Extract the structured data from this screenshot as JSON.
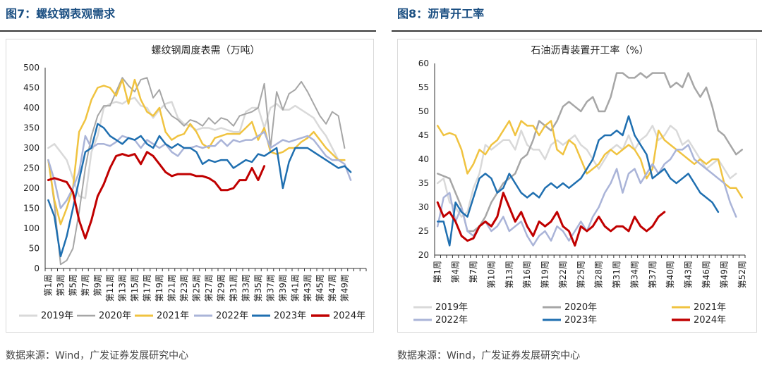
{
  "figure_left": {
    "title": "图7：螺纹钢表观需求",
    "source": "数据来源：Wind，广发证券发展研究中心"
  },
  "figure_right": {
    "title": "图8：沥青开工率",
    "source": "数据来源：Wind，广发证券发展研究中心"
  },
  "chart_data": [
    {
      "type": "line",
      "title": "螺纹钢周度表需（万吨）",
      "xlabel": "",
      "ylabel": "",
      "ylim": [
        0,
        500
      ],
      "y_ticks": [
        0,
        50,
        100,
        150,
        200,
        250,
        300,
        350,
        400,
        450,
        500
      ],
      "x_count": 52,
      "x_tick_labels": [
        "第1周",
        "第3周",
        "第5周",
        "第7周",
        "第9周",
        "第11周",
        "第13周",
        "第15周",
        "第17周",
        "第19周",
        "第21周",
        "第23周",
        "第25周",
        "第27周",
        "第29周",
        "第31周",
        "第33周",
        "第35周",
        "第37周",
        "第39周",
        "第41周",
        "第43周",
        "第45周",
        "第47周",
        "第49周"
      ],
      "legend_position": "bottom",
      "series": [
        {
          "name": "2019年",
          "color": "#d9d9d9",
          "width": 2.5,
          "values": [
            300,
            310,
            290,
            270,
            225,
            180,
            175,
            290,
            330,
            400,
            410,
            415,
            410,
            420,
            425,
            405,
            400,
            375,
            395,
            410,
            415,
            375,
            360,
            355,
            345,
            350,
            350,
            345,
            350,
            345,
            340,
            340,
            390,
            400,
            400,
            350,
            400,
            410,
            395,
            395,
            405,
            395,
            385,
            375,
            350,
            330,
            300,
            270
          ]
        },
        {
          "name": "2020年",
          "color": "#a6a6a6",
          "width": 2,
          "values": [
            270,
            160,
            10,
            20,
            50,
            140,
            250,
            330,
            380,
            405,
            405,
            440,
            475,
            455,
            440,
            470,
            475,
            425,
            445,
            400,
            380,
            370,
            355,
            370,
            365,
            355,
            375,
            360,
            375,
            370,
            355,
            380,
            385,
            390,
            400,
            460,
            300,
            440,
            395,
            435,
            445,
            465,
            440,
            410,
            380,
            360,
            390,
            380,
            300
          ]
        },
        {
          "name": "2021年",
          "color": "#f0c340",
          "width": 2.5,
          "values": [
            270,
            170,
            110,
            150,
            200,
            340,
            370,
            420,
            450,
            455,
            450,
            430,
            470,
            410,
            470,
            420,
            390,
            380,
            400,
            340,
            320,
            330,
            335,
            360,
            340,
            310,
            300,
            325,
            330,
            335,
            335,
            335,
            350,
            365,
            320,
            350,
            290,
            285,
            290,
            300,
            300,
            315,
            325,
            340,
            320,
            300,
            285,
            270,
            270
          ]
        },
        {
          "name": "2022年",
          "color": "#aab4d8",
          "width": 2.5,
          "values": [
            270,
            220,
            150,
            170,
            200,
            240,
            330,
            300,
            310,
            310,
            305,
            315,
            330,
            325,
            320,
            300,
            320,
            310,
            300,
            310,
            290,
            280,
            300,
            300,
            305,
            300,
            305,
            305,
            320,
            305,
            320,
            315,
            320,
            320,
            330,
            340,
            300,
            310,
            320,
            315,
            320,
            325,
            330,
            320,
            300,
            280,
            270,
            270,
            260,
            220
          ]
        },
        {
          "name": "2023年",
          "color": "#1f6fb0",
          "width": 2.5,
          "values": [
            170,
            130,
            30,
            80,
            150,
            220,
            290,
            300,
            360,
            350,
            330,
            320,
            310,
            325,
            320,
            330,
            310,
            300,
            330,
            310,
            300,
            310,
            300,
            300,
            290,
            260,
            270,
            265,
            270,
            270,
            250,
            260,
            270,
            265,
            285,
            280,
            290,
            300,
            200,
            265,
            300,
            300,
            300,
            290,
            280,
            270,
            260,
            250,
            255,
            240
          ]
        },
        {
          "name": "2024年",
          "color": "#c00000",
          "width": 3,
          "values": [
            220,
            225,
            220,
            215,
            190,
            120,
            75,
            120,
            180,
            210,
            250,
            280,
            285,
            280,
            285,
            260,
            290,
            280,
            260,
            240,
            230,
            235,
            235,
            235,
            230,
            230,
            225,
            215,
            195,
            195,
            200,
            220,
            220,
            250,
            220,
            255
          ]
        }
      ]
    },
    {
      "type": "line",
      "title": "石油沥青装置开工率（%）",
      "xlabel": "",
      "ylabel": "",
      "ylim": [
        20,
        60
      ],
      "y_ticks": [
        20,
        25,
        30,
        35,
        40,
        45,
        50,
        55,
        60
      ],
      "x_count": 52,
      "x_tick_labels": [
        "第1周",
        "第4周",
        "第7周",
        "第10周",
        "第13周",
        "第16周",
        "第19周",
        "第22周",
        "第25周",
        "第28周",
        "第31周",
        "第34周",
        "第37周",
        "第40周",
        "第43周",
        "第46周",
        "第49周",
        "第52周"
      ],
      "legend_position": "bottom",
      "series": [
        {
          "name": "2019年",
          "color": "#d9d9d9",
          "width": 2.5,
          "values": [
            35,
            36,
            31,
            30,
            28,
            29,
            34,
            37,
            43,
            42,
            43,
            44,
            44,
            42,
            46,
            43,
            42,
            42,
            40,
            43,
            44,
            43,
            44,
            45,
            43,
            42,
            40,
            38,
            40,
            42,
            43,
            42,
            45,
            42,
            44,
            45,
            47,
            44,
            45,
            47,
            46,
            43,
            44,
            42,
            40,
            38,
            39,
            40,
            38,
            36,
            37
          ]
        },
        {
          "name": "2020年",
          "color": "#a6a6a6",
          "width": 2.5,
          "values": [
            37,
            36.5,
            36,
            33,
            30,
            25,
            25,
            26,
            28,
            31,
            33,
            35,
            36,
            37,
            40,
            41,
            44,
            48,
            47,
            46,
            48,
            51,
            52,
            51,
            50,
            52,
            53,
            50,
            50,
            53,
            58,
            58,
            57,
            57,
            58,
            57,
            58,
            58,
            58,
            55,
            56,
            55,
            58,
            55,
            53,
            55,
            51,
            46,
            45,
            43,
            41,
            42
          ]
        },
        {
          "name": "2021年",
          "color": "#f0c340",
          "width": 2.5,
          "values": [
            47,
            45,
            45.5,
            45,
            42,
            37,
            39,
            42,
            41,
            43,
            44,
            46,
            48,
            45,
            48,
            47,
            47,
            45,
            47,
            48,
            42,
            41,
            44,
            43,
            40,
            37,
            38,
            39,
            41,
            42,
            41,
            42,
            43,
            42,
            40,
            36,
            38,
            46,
            44,
            43,
            42,
            41,
            40,
            39,
            40,
            39,
            40,
            40,
            35,
            34,
            34,
            32
          ]
        },
        {
          "name": "2022年",
          "color": "#aab4d8",
          "width": 2.5,
          "values": [
            26,
            32,
            33,
            27,
            30,
            25,
            24,
            26,
            27,
            25,
            26,
            28,
            25,
            26,
            27,
            24,
            22,
            24,
            25,
            23,
            26,
            25,
            23,
            25,
            27,
            25,
            28,
            30,
            33,
            35,
            38,
            33,
            37,
            38,
            35,
            37,
            39,
            37,
            39,
            40,
            42,
            42,
            43,
            40,
            39,
            38,
            37,
            36,
            35,
            31,
            28
          ]
        },
        {
          "name": "2023年",
          "color": "#1f6fb0",
          "width": 2.5,
          "values": [
            27,
            27,
            22,
            31,
            29,
            28,
            32,
            36,
            37,
            36,
            33,
            34,
            37,
            35,
            33,
            32,
            33,
            32,
            34,
            35,
            34,
            35,
            34,
            35,
            36,
            38,
            40,
            44,
            45,
            45,
            46,
            45,
            49,
            45,
            43,
            41,
            36,
            37,
            38,
            36,
            35,
            36,
            37,
            35,
            33,
            32,
            31,
            29
          ]
        },
        {
          "name": "2024年",
          "color": "#c00000",
          "width": 3,
          "values": [
            31,
            28,
            29,
            27,
            24,
            23,
            23.5,
            26,
            27,
            26,
            28,
            33,
            30,
            27,
            29,
            26,
            24,
            27,
            26,
            27,
            29,
            26,
            25,
            22,
            26,
            25,
            26,
            28,
            26,
            25,
            26,
            26,
            25,
            28,
            26,
            25,
            26,
            28,
            29
          ]
        }
      ]
    }
  ]
}
